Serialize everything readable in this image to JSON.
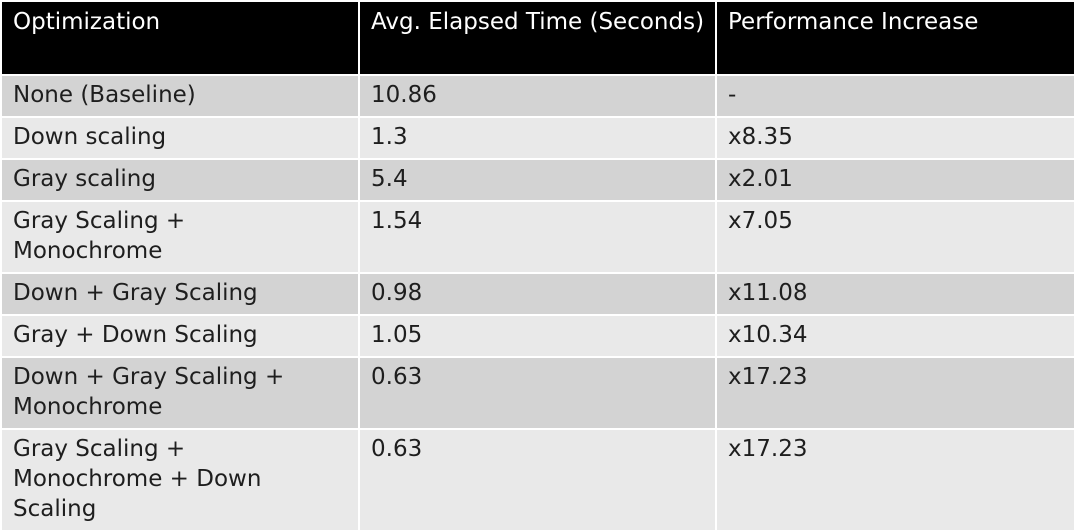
{
  "table": {
    "headers": [
      "Optimization",
      "Avg. Elapsed Time (Seconds)",
      "Performance Increase"
    ],
    "rows": [
      [
        "None (Baseline)",
        "10.86",
        "-"
      ],
      [
        "Down scaling",
        "1.3",
        "x8.35"
      ],
      [
        "Gray scaling",
        "5.4",
        "x2.01"
      ],
      [
        "Gray Scaling + Monochrome",
        "1.54",
        "x7.05"
      ],
      [
        "Down + Gray Scaling",
        "0.98",
        "x11.08"
      ],
      [
        "Gray + Down Scaling",
        "1.05",
        "x10.34"
      ],
      [
        "Down + Gray Scaling + Monochrome",
        "0.63",
        "x17.23"
      ],
      [
        "Gray Scaling + Monochrome + Down Scaling",
        "0.63",
        "x17.23"
      ]
    ]
  },
  "colors": {
    "header_bg": "#000000",
    "header_text": "#ffffff",
    "row_dark": "#d3d3d3",
    "row_light": "#e9e9e9",
    "text": "#1e1e1e"
  }
}
